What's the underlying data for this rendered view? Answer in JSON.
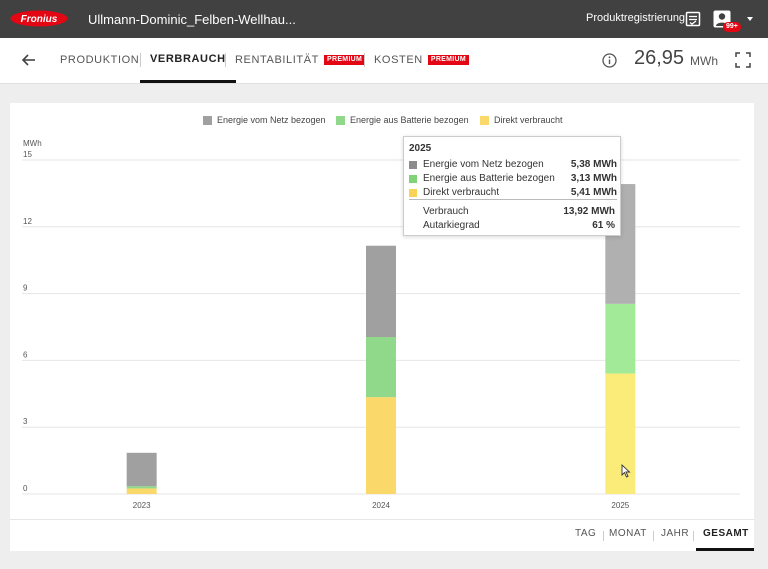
{
  "app": {
    "logo_text": "Fronius",
    "site_title": "Ullmann-Dominic_Felben-Wellhau...",
    "product_registration": "Produktregistrierung",
    "notification_badge": "99+",
    "brand_color": "#e30613"
  },
  "nav": {
    "tabs": [
      {
        "label": "PRODUKTION",
        "premium": ""
      },
      {
        "label": "VERBRAUCH",
        "premium": ""
      },
      {
        "label": "RENTABILITÄT",
        "premium": "PREMIUM"
      },
      {
        "label": "KOSTEN",
        "premium": "PREMIUM"
      }
    ],
    "active_tab": "VERBRAUCH",
    "total_value": "26,95",
    "total_unit": "MWh"
  },
  "legend": [
    {
      "label": "Energie vom Netz bezogen",
      "color": "#a0a0a0"
    },
    {
      "label": "Energie aus Batterie bezogen",
      "color": "#90d88a"
    },
    {
      "label": "Direkt verbraucht",
      "color": "#fbd86a"
    }
  ],
  "tooltip": {
    "title": "2025",
    "rows": [
      {
        "label": "Energie vom Netz bezogen",
        "value": "5,38 MWh",
        "color": "#8c8c8c"
      },
      {
        "label": "Energie aus Batterie bezogen",
        "value": "3,13 MWh",
        "color": "#7fd477"
      },
      {
        "label": "Direkt verbraucht",
        "value": "5,41 MWh",
        "color": "#f7d358"
      }
    ],
    "summary": [
      {
        "label": "Verbrauch",
        "value": "13,92 MWh"
      },
      {
        "label": "Autarkiegrad",
        "value": "61 %"
      }
    ]
  },
  "chart_data": {
    "type": "bar",
    "stacked": true,
    "categories": [
      "2023",
      "2024",
      "2025"
    ],
    "series": [
      {
        "name": "Direkt verbraucht",
        "values": [
          0.25,
          4.35,
          5.41
        ],
        "color": "#fbd86a",
        "highlight_color": "#fbec7a"
      },
      {
        "name": "Energie aus Batterie bezogen",
        "values": [
          0.1,
          2.7,
          3.13
        ],
        "color": "#90d88a",
        "highlight_color": "#a3ea98"
      },
      {
        "name": "Energie vom Netz bezogen",
        "values": [
          1.5,
          4.1,
          5.38
        ],
        "color": "#a0a0a0",
        "highlight_color": "#b0b0b0"
      }
    ],
    "highlighted_category": "2025",
    "ylabel": "MWh",
    "ylim": [
      0,
      15
    ],
    "yticks": [
      0,
      3,
      6,
      9,
      12,
      15
    ],
    "grid": true,
    "legend_position": "top-center"
  },
  "ranges": {
    "items": [
      "TAG",
      "MONAT",
      "JAHR",
      "GESAMT"
    ],
    "active": "GESAMT"
  }
}
